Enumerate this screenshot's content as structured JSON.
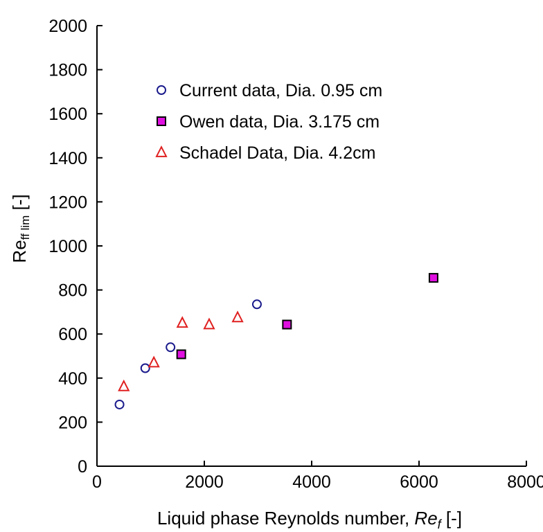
{
  "chart_data": {
    "type": "scatter",
    "title": "",
    "xlabel_main": "Liquid phase Reynolds number, ",
    "xlabel_symbol": "Re",
    "xlabel_subscript": "f",
    "xlabel_unit": " [-]",
    "ylabel_main": "Re",
    "ylabel_subscript": "ff lim",
    "ylabel_unit": " [-]",
    "xlim": [
      0,
      8000
    ],
    "ylim": [
      0,
      2000
    ],
    "x_ticks": [
      "0",
      "2000",
      "4000",
      "6000",
      "8000"
    ],
    "y_ticks": [
      "0",
      "200",
      "400",
      "600",
      "800",
      "1000",
      "1200",
      "1400",
      "1600",
      "1800",
      "2000"
    ],
    "grid": false,
    "legend_position": "top-left",
    "series": [
      {
        "name": "Current data, Dia. 0.95 cm",
        "marker": "circle",
        "color": "#1a1a8c",
        "fill": "none",
        "points": [
          [
            420,
            280
          ],
          [
            900,
            445
          ],
          [
            1370,
            540
          ],
          [
            2980,
            735
          ]
        ]
      },
      {
        "name": "Owen data, Dia.  3.175 cm",
        "marker": "square",
        "color": "#000000",
        "fill": "#e010e0",
        "points": [
          [
            1570,
            508
          ],
          [
            3540,
            643
          ],
          [
            6270,
            855
          ]
        ]
      },
      {
        "name": "Schadel Data, Dia.  4.2cm",
        "marker": "triangle",
        "color": "#e02020",
        "fill": "none",
        "points": [
          [
            500,
            362
          ],
          [
            1060,
            470
          ],
          [
            1590,
            650
          ],
          [
            2090,
            643
          ],
          [
            2620,
            675
          ]
        ]
      }
    ]
  }
}
